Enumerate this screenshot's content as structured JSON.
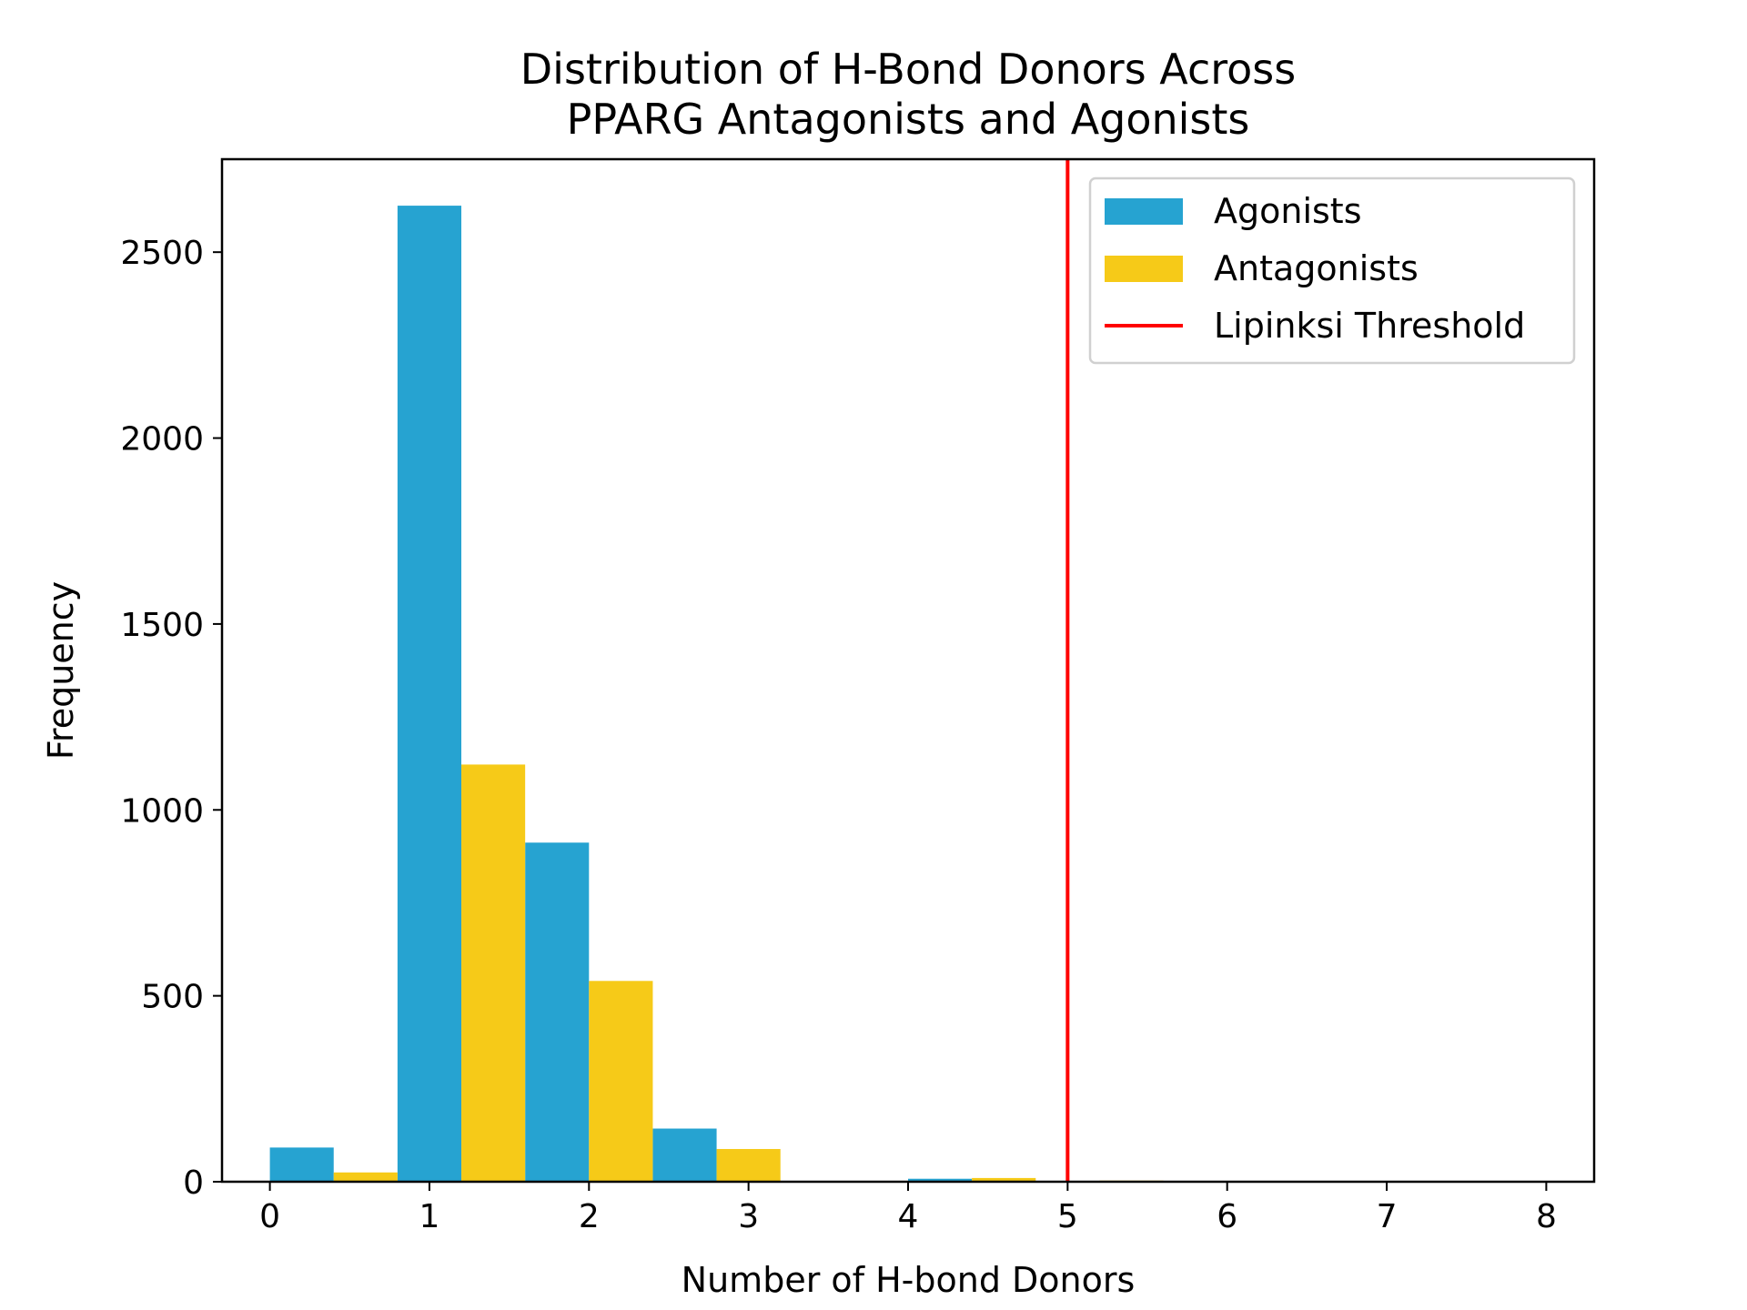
{
  "chart_data": {
    "type": "bar",
    "title": [
      "Distribution of H-Bond Donors Across",
      "PPARG Antagonists and Agonists"
    ],
    "xlabel": "Number of H-bond Donors",
    "ylabel": "Frequency",
    "xlim": [
      -0.3,
      8.3
    ],
    "ylim": [
      0,
      2750
    ],
    "xticks": [
      0,
      1,
      2,
      3,
      4,
      5,
      6,
      7,
      8
    ],
    "xtick_labels": [
      "0",
      "1",
      "2",
      "3",
      "4",
      "5",
      "6",
      "7",
      "8"
    ],
    "yticks": [
      0,
      500,
      1000,
      1500,
      2000,
      2500
    ],
    "ytick_labels": [
      "0",
      "500",
      "1000",
      "1500",
      "2000",
      "2500"
    ],
    "bin_edges": [
      0,
      0.8,
      1.6,
      2.4,
      3.2,
      4.0,
      4.8,
      5.6,
      6.4,
      7.2,
      8.0
    ],
    "series": [
      {
        "name": "Agonists",
        "color": "#26a3d1",
        "values": [
          92,
          2625,
          912,
          143,
          0,
          8,
          0,
          0,
          0,
          0
        ]
      },
      {
        "name": "Antagonists",
        "color": "#f6ca18",
        "values": [
          25,
          1122,
          540,
          88,
          0,
          10,
          3,
          0,
          0,
          0
        ]
      }
    ],
    "threshold": {
      "name": "Lipinksi Threshold",
      "x": 5,
      "color": "#ff0000"
    },
    "legend_position": "top-right",
    "grid": false
  }
}
